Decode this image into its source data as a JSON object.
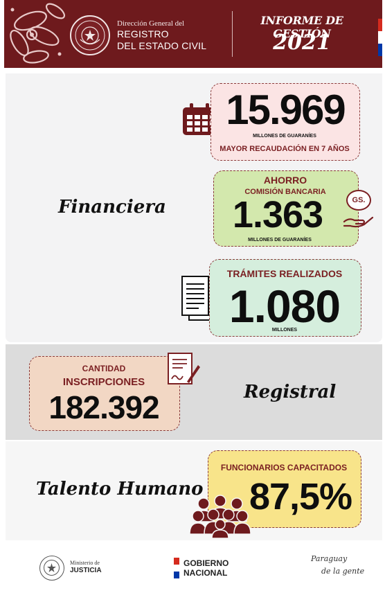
{
  "header": {
    "org_line1": "Dirección General del",
    "org_line2": "REGISTRO",
    "org_line3": "DEL ESTADO CIVIL",
    "seal_text": "REPÚBLICA DEL PARAGUAY",
    "report_title": "INFORME DE GESTIÓN",
    "report_year": "2021",
    "colors": {
      "primary": "#6e1a1d",
      "flag_red": "#d52b1e",
      "flag_white": "#ffffff",
      "flag_blue": "#0038a8"
    }
  },
  "financiera": {
    "label": "Financiera",
    "recaudacion": {
      "value": "15.969",
      "unit": "MILLONES DE GUARANÍES",
      "caption": "MAYOR RECAUDACIÓN EN 7 AÑOS",
      "color": "#fbe4e4",
      "icon": "calendar-icon"
    },
    "ahorro": {
      "title": "AHORRO",
      "subtitle": "COMISIÓN BANCARIA",
      "value": "1.363",
      "unit": "MILLONES DE GUARANÍES",
      "currency_badge": "GS.",
      "color": "#d3e8ad",
      "icon": "money-hand-icon"
    },
    "tramites": {
      "title": "TRÁMITES REALIZADOS",
      "value": "1.080",
      "unit": "MILLONES",
      "color": "#d5eedd",
      "icon": "documents-icon"
    }
  },
  "registral": {
    "label": "Registral",
    "inscripciones": {
      "title_line1": "CANTIDAD",
      "title_line2": "INSCRIPCIONES",
      "value": "182.392",
      "color": "#f2d7c4",
      "icon": "signed-document-icon"
    }
  },
  "talento": {
    "label": "Talento Humano",
    "capacitados": {
      "title": "FUNCIONARIOS CAPACITADOS",
      "value": "87,5%",
      "color": "#f8e48a",
      "icon": "people-group-icon"
    }
  },
  "footer": {
    "ministerio_small": "Ministerio de",
    "ministerio_big": "JUSTICIA",
    "gobierno_line1": "GOBIERNO",
    "gobierno_line2": "NACIONAL",
    "slogan_line1": "Paraguay",
    "slogan_line2": "de la gente"
  }
}
